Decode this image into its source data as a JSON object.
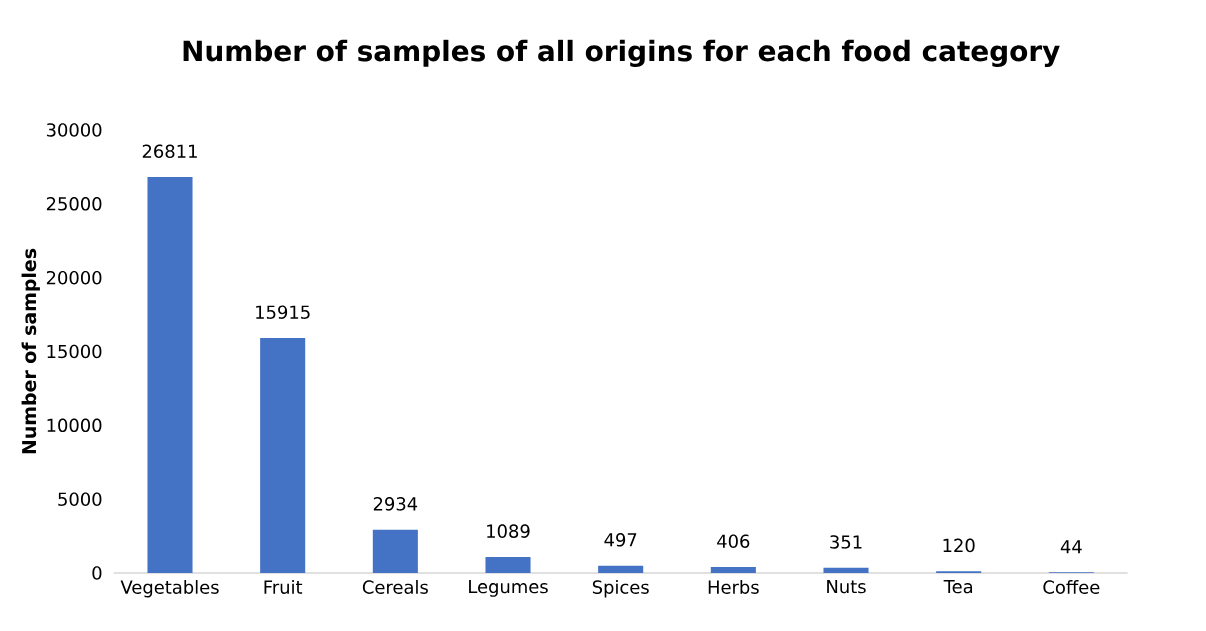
{
  "chart_data": {
    "type": "bar",
    "title": "Number of samples of all origins for each food category",
    "ylabel": "Number of samples",
    "categories": [
      "Vegetables",
      "Fruit",
      "Cereals",
      "Legumes",
      "Spices",
      "Herbs",
      "Nuts",
      "Tea",
      "Coffee"
    ],
    "values": [
      26811,
      15915,
      2934,
      1089,
      497,
      406,
      351,
      120,
      44
    ],
    "color": "#4472c4",
    "ylim": [
      0,
      30000
    ],
    "yticks": [
      0,
      5000,
      10000,
      15000,
      20000,
      25000,
      30000
    ],
    "data_labels": true
  }
}
